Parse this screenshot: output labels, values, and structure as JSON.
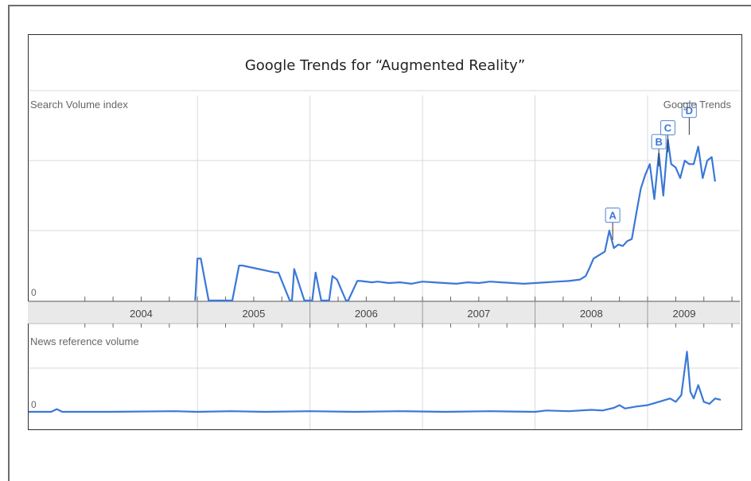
{
  "title": "Google Trends for “Augmented Reality”",
  "colors": {
    "line": "#3a78d8",
    "grid": "#d9d9d9",
    "band": "#e9e9e9",
    "label": "#666666",
    "flag_border": "#6a9ad8",
    "flag_text": "#3a78d8"
  },
  "chart_data": [
    {
      "type": "line",
      "name": "search-volume",
      "ylabel": "Search Volume index",
      "corner_label": "Google Trends",
      "y_tick_labels": [
        "0"
      ],
      "ylim": [
        0,
        3.0
      ],
      "x_range": [
        2003.5,
        2009.82
      ],
      "x_tick_labels": [
        "2004",
        "2005",
        "2006",
        "2007",
        "2008",
        "2009"
      ],
      "flags": [
        "A",
        "B",
        "C",
        "D"
      ],
      "flag_x": [
        2008.69,
        2009.1,
        2009.18,
        2009.37
      ],
      "flag_y": [
        1.05,
        2.1,
        2.3,
        2.55
      ],
      "x": [
        2004.98,
        2005.0,
        2005.03,
        2005.1,
        2005.12,
        2005.17,
        2005.29,
        2005.31,
        2005.37,
        2005.4,
        2005.69,
        2005.72,
        2005.82,
        2005.84,
        2005.86,
        2005.95,
        2006.02,
        2006.05,
        2006.1,
        2006.17,
        2006.2,
        2006.24,
        2006.32,
        2006.34,
        2006.42,
        2006.45,
        2006.55,
        2006.6,
        2006.7,
        2006.8,
        2006.9,
        2007.0,
        2007.1,
        2007.2,
        2007.3,
        2007.4,
        2007.5,
        2007.6,
        2007.7,
        2007.8,
        2007.9,
        2008.0,
        2008.1,
        2008.2,
        2008.3,
        2008.4,
        2008.45,
        2008.48,
        2008.52,
        2008.57,
        2008.62,
        2008.66,
        2008.7,
        2008.74,
        2008.78,
        2008.82,
        2008.86,
        2008.9,
        2008.94,
        2008.98,
        2009.02,
        2009.06,
        2009.1,
        2009.14,
        2009.18,
        2009.21,
        2009.25,
        2009.29,
        2009.33,
        2009.37,
        2009.41,
        2009.45,
        2009.49,
        2009.53,
        2009.57,
        2009.6
      ],
      "y": [
        0.0,
        0.6,
        0.6,
        0.0,
        0.0,
        0.0,
        0.0,
        0.0,
        0.5,
        0.5,
        0.4,
        0.4,
        0.0,
        0.0,
        0.45,
        0.0,
        0.0,
        0.4,
        0.0,
        0.0,
        0.35,
        0.3,
        0.0,
        0.0,
        0.28,
        0.28,
        0.26,
        0.27,
        0.25,
        0.26,
        0.24,
        0.27,
        0.26,
        0.25,
        0.24,
        0.26,
        0.25,
        0.27,
        0.26,
        0.25,
        0.24,
        0.25,
        0.26,
        0.27,
        0.28,
        0.3,
        0.35,
        0.45,
        0.6,
        0.65,
        0.7,
        1.0,
        0.75,
        0.8,
        0.78,
        0.85,
        0.88,
        1.25,
        1.6,
        1.8,
        1.95,
        1.45,
        2.1,
        1.5,
        2.3,
        1.95,
        1.9,
        1.75,
        2.0,
        1.95,
        1.95,
        2.2,
        1.75,
        2.0,
        2.05,
        1.7
      ],
      "color": "#3a78d8"
    },
    {
      "type": "line",
      "name": "news-reference-volume",
      "ylabel": "News reference volume",
      "y_tick_labels": [
        "0"
      ],
      "ylim": [
        0,
        1.0
      ],
      "x_range": [
        2003.5,
        2009.82
      ],
      "x": [
        2003.5,
        2003.7,
        2003.75,
        2003.8,
        2004.2,
        2004.8,
        2005.0,
        2005.3,
        2005.6,
        2006.0,
        2006.4,
        2006.8,
        2007.2,
        2007.6,
        2008.0,
        2008.1,
        2008.3,
        2008.5,
        2008.6,
        2008.7,
        2008.75,
        2008.8,
        2008.9,
        2009.0,
        2009.1,
        2009.2,
        2009.25,
        2009.3,
        2009.35,
        2009.38,
        2009.41,
        2009.45,
        2009.5,
        2009.55,
        2009.6,
        2009.65
      ],
      "y": [
        0.0,
        0.0,
        0.04,
        0.0,
        0.0,
        0.01,
        0.0,
        0.01,
        0.0,
        0.01,
        0.0,
        0.01,
        0.0,
        0.01,
        0.0,
        0.02,
        0.01,
        0.03,
        0.02,
        0.06,
        0.1,
        0.05,
        0.08,
        0.1,
        0.15,
        0.2,
        0.15,
        0.25,
        0.9,
        0.3,
        0.2,
        0.4,
        0.15,
        0.12,
        0.2,
        0.18
      ],
      "color": "#3a78d8"
    }
  ]
}
